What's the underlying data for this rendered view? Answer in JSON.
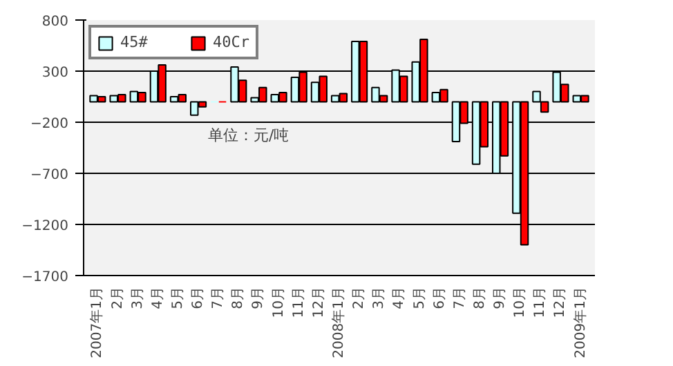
{
  "chart_data": {
    "type": "bar",
    "categories": [
      "2007年1月",
      "2月",
      "3月",
      "4月",
      "5月",
      "6月",
      "7月",
      "8月",
      "9月",
      "10月",
      "11月",
      "12月",
      "2008年1月",
      "2月",
      "3月",
      "4月",
      "5月",
      "6月",
      "7月",
      "8月",
      "9月",
      "10月",
      "11月",
      "12月",
      "2009年1月"
    ],
    "series": [
      {
        "name": "45#",
        "color": "#ccffff",
        "values": [
          60,
          60,
          100,
          300,
          50,
          -130,
          0,
          340,
          40,
          70,
          240,
          190,
          60,
          590,
          140,
          310,
          390,
          90,
          -390,
          -610,
          -700,
          -1090,
          100,
          290,
          60
        ]
      },
      {
        "name": "40Cr",
        "color": "#ff0000",
        "values": [
          50,
          70,
          90,
          360,
          70,
          -50,
          0,
          210,
          140,
          90,
          290,
          250,
          80,
          590,
          60,
          250,
          610,
          120,
          -210,
          -440,
          -530,
          -1400,
          -100,
          170,
          60
        ]
      }
    ],
    "ylim": [
      -1700,
      800
    ],
    "yticks": [
      -1700,
      -1200,
      -700,
      -200,
      300,
      800
    ],
    "grid": "y",
    "legend": "top left",
    "annotations": [
      "单位：元/吨"
    ]
  }
}
